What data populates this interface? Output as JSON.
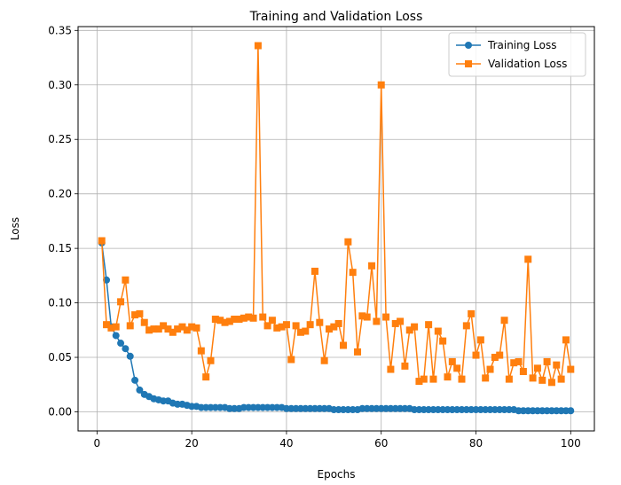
{
  "chart_data": {
    "type": "line",
    "title": "Training and Validation Loss",
    "xlabel": "Epochs",
    "ylabel": "Loss",
    "xlim": [
      -4,
      105
    ],
    "ylim": [
      -0.0175,
      0.3535
    ],
    "xticks": [
      0,
      20,
      40,
      60,
      80,
      100
    ],
    "xtick_labels": [
      "0",
      "20",
      "40",
      "60",
      "80",
      "100"
    ],
    "yticks": [
      0.0,
      0.05,
      0.1,
      0.15,
      0.2,
      0.25,
      0.3,
      0.35
    ],
    "ytick_labels": [
      "0.00",
      "0.05",
      "0.10",
      "0.15",
      "0.20",
      "0.25",
      "0.30",
      "0.35"
    ],
    "grid": true,
    "legend_position": "top-right",
    "series": [
      {
        "name": "Training Loss",
        "color": "#1f77b4",
        "marker": "circle",
        "x": [
          1,
          2,
          3,
          4,
          5,
          6,
          7,
          8,
          9,
          10,
          11,
          12,
          13,
          14,
          15,
          16,
          17,
          18,
          19,
          20,
          21,
          22,
          23,
          24,
          25,
          26,
          27,
          28,
          29,
          30,
          31,
          32,
          33,
          34,
          35,
          36,
          37,
          38,
          39,
          40,
          41,
          42,
          43,
          44,
          45,
          46,
          47,
          48,
          49,
          50,
          51,
          52,
          53,
          54,
          55,
          56,
          57,
          58,
          59,
          60,
          61,
          62,
          63,
          64,
          65,
          66,
          67,
          68,
          69,
          70,
          71,
          72,
          73,
          74,
          75,
          76,
          77,
          78,
          79,
          80,
          81,
          82,
          83,
          84,
          85,
          86,
          87,
          88,
          89,
          90,
          91,
          92,
          93,
          94,
          95,
          96,
          97,
          98,
          99,
          100
        ],
        "values": [
          0.155,
          0.121,
          0.078,
          0.07,
          0.063,
          0.058,
          0.051,
          0.029,
          0.02,
          0.016,
          0.014,
          0.012,
          0.011,
          0.01,
          0.01,
          0.008,
          0.007,
          0.007,
          0.006,
          0.005,
          0.005,
          0.004,
          0.004,
          0.004,
          0.004,
          0.004,
          0.004,
          0.003,
          0.003,
          0.003,
          0.004,
          0.004,
          0.004,
          0.004,
          0.004,
          0.004,
          0.004,
          0.004,
          0.004,
          0.003,
          0.003,
          0.003,
          0.003,
          0.003,
          0.003,
          0.003,
          0.003,
          0.003,
          0.003,
          0.002,
          0.002,
          0.002,
          0.002,
          0.002,
          0.002,
          0.003,
          0.003,
          0.003,
          0.003,
          0.003,
          0.003,
          0.003,
          0.003,
          0.003,
          0.003,
          0.003,
          0.002,
          0.002,
          0.002,
          0.002,
          0.002,
          0.002,
          0.002,
          0.002,
          0.002,
          0.002,
          0.002,
          0.002,
          0.002,
          0.002,
          0.002,
          0.002,
          0.002,
          0.002,
          0.002,
          0.002,
          0.002,
          0.002,
          0.001,
          0.001,
          0.001,
          0.001,
          0.001,
          0.001,
          0.001,
          0.001,
          0.001,
          0.001,
          0.001,
          0.001
        ]
      },
      {
        "name": "Validation Loss",
        "color": "#ff7f0e",
        "marker": "square",
        "x": [
          1,
          2,
          3,
          4,
          5,
          6,
          7,
          8,
          9,
          10,
          11,
          12,
          13,
          14,
          15,
          16,
          17,
          18,
          19,
          20,
          21,
          22,
          23,
          24,
          25,
          26,
          27,
          28,
          29,
          30,
          31,
          32,
          33,
          34,
          35,
          36,
          37,
          38,
          39,
          40,
          41,
          42,
          43,
          44,
          45,
          46,
          47,
          48,
          49,
          50,
          51,
          52,
          53,
          54,
          55,
          56,
          57,
          58,
          59,
          60,
          61,
          62,
          63,
          64,
          65,
          66,
          67,
          68,
          69,
          70,
          71,
          72,
          73,
          74,
          75,
          76,
          77,
          78,
          79,
          80,
          81,
          82,
          83,
          84,
          85,
          86,
          87,
          88,
          89,
          90,
          91,
          92,
          93,
          94,
          95,
          96,
          97,
          98,
          99,
          100
        ],
        "values": [
          0.157,
          0.08,
          0.077,
          0.078,
          0.101,
          0.121,
          0.079,
          0.089,
          0.09,
          0.082,
          0.075,
          0.076,
          0.076,
          0.079,
          0.076,
          0.073,
          0.076,
          0.078,
          0.075,
          0.078,
          0.077,
          0.056,
          0.032,
          0.047,
          0.085,
          0.084,
          0.082,
          0.083,
          0.085,
          0.085,
          0.086,
          0.087,
          0.086,
          0.336,
          0.087,
          0.079,
          0.084,
          0.077,
          0.078,
          0.08,
          0.048,
          0.079,
          0.073,
          0.074,
          0.08,
          0.129,
          0.082,
          0.047,
          0.076,
          0.078,
          0.081,
          0.061,
          0.156,
          0.128,
          0.055,
          0.088,
          0.087,
          0.134,
          0.083,
          0.3,
          0.087,
          0.039,
          0.081,
          0.083,
          0.042,
          0.075,
          0.078,
          0.028,
          0.03,
          0.08,
          0.03,
          0.074,
          0.065,
          0.032,
          0.046,
          0.04,
          0.03,
          0.079,
          0.09,
          0.052,
          0.066,
          0.031,
          0.039,
          0.05,
          0.052,
          0.084,
          0.03,
          0.045,
          0.046,
          0.037,
          0.14,
          0.031,
          0.04,
          0.029,
          0.046,
          0.027,
          0.043,
          0.03,
          0.066,
          0.039
        ]
      }
    ]
  }
}
